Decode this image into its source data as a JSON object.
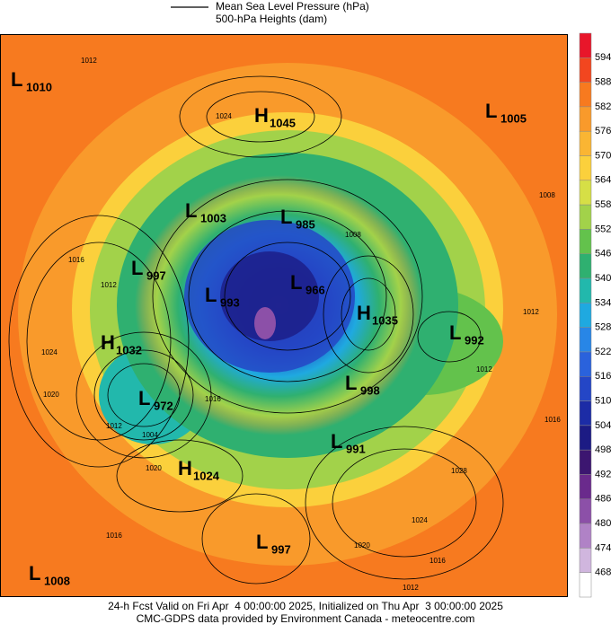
{
  "legend": {
    "items": [
      "Mean Sea Level Pressure (hPa)",
      "500-hPa Heights (dam)"
    ]
  },
  "colorbar": {
    "labels": [
      594,
      588,
      582,
      576,
      570,
      564,
      558,
      552,
      546,
      540,
      534,
      528,
      522,
      516,
      510,
      504,
      498,
      492,
      486,
      480,
      474,
      468
    ],
    "colors": [
      "#e8162a",
      "#f2461f",
      "#f77a1f",
      "#f99a2b",
      "#fab533",
      "#fbd03c",
      "#d6df46",
      "#a2d24a",
      "#63c24c",
      "#2fb070",
      "#22b8ac",
      "#1fa9e0",
      "#2886e6",
      "#2a62dc",
      "#2446c6",
      "#1c2ca6",
      "#1c1b84",
      "#3c1670",
      "#6a2a8c",
      "#8c50a8",
      "#b082c6",
      "#d0b6de",
      "#ffffff"
    ]
  },
  "centers": [
    {
      "type": "L",
      "value": "1010"
    },
    {
      "type": "H",
      "value": "1045"
    },
    {
      "type": "L",
      "value": "1005"
    },
    {
      "type": "L",
      "value": "1003"
    },
    {
      "type": "L",
      "value": "985"
    },
    {
      "type": "L",
      "value": "997"
    },
    {
      "type": "L",
      "value": "993"
    },
    {
      "type": "L",
      "value": "966"
    },
    {
      "type": "H",
      "value": "1035"
    },
    {
      "type": "L",
      "value": "992"
    },
    {
      "type": "H",
      "value": "1032"
    },
    {
      "type": "L",
      "value": "998"
    },
    {
      "type": "L",
      "value": "972"
    },
    {
      "type": "L",
      "value": "991"
    },
    {
      "type": "H",
      "value": "1024"
    },
    {
      "type": "L",
      "value": "997"
    },
    {
      "type": "L",
      "value": "1008"
    }
  ],
  "contour_labels": [
    "1012",
    "1024",
    "1008",
    "1016",
    "1012",
    "1024",
    "1020",
    "1012",
    "1004",
    "1016",
    "1008",
    "1012",
    "1012",
    "1016",
    "1020",
    "1028",
    "1024",
    "1016",
    "1020",
    "1016",
    "1012"
  ],
  "footer": [
    "24-h Fcst Valid on Fri Apr  4 00:00:00 2025, Initialized on Thu Apr  3 00:00:00 2025",
    "CMC-GDPS data provided by Environment Canada - meteocentre.com"
  ]
}
